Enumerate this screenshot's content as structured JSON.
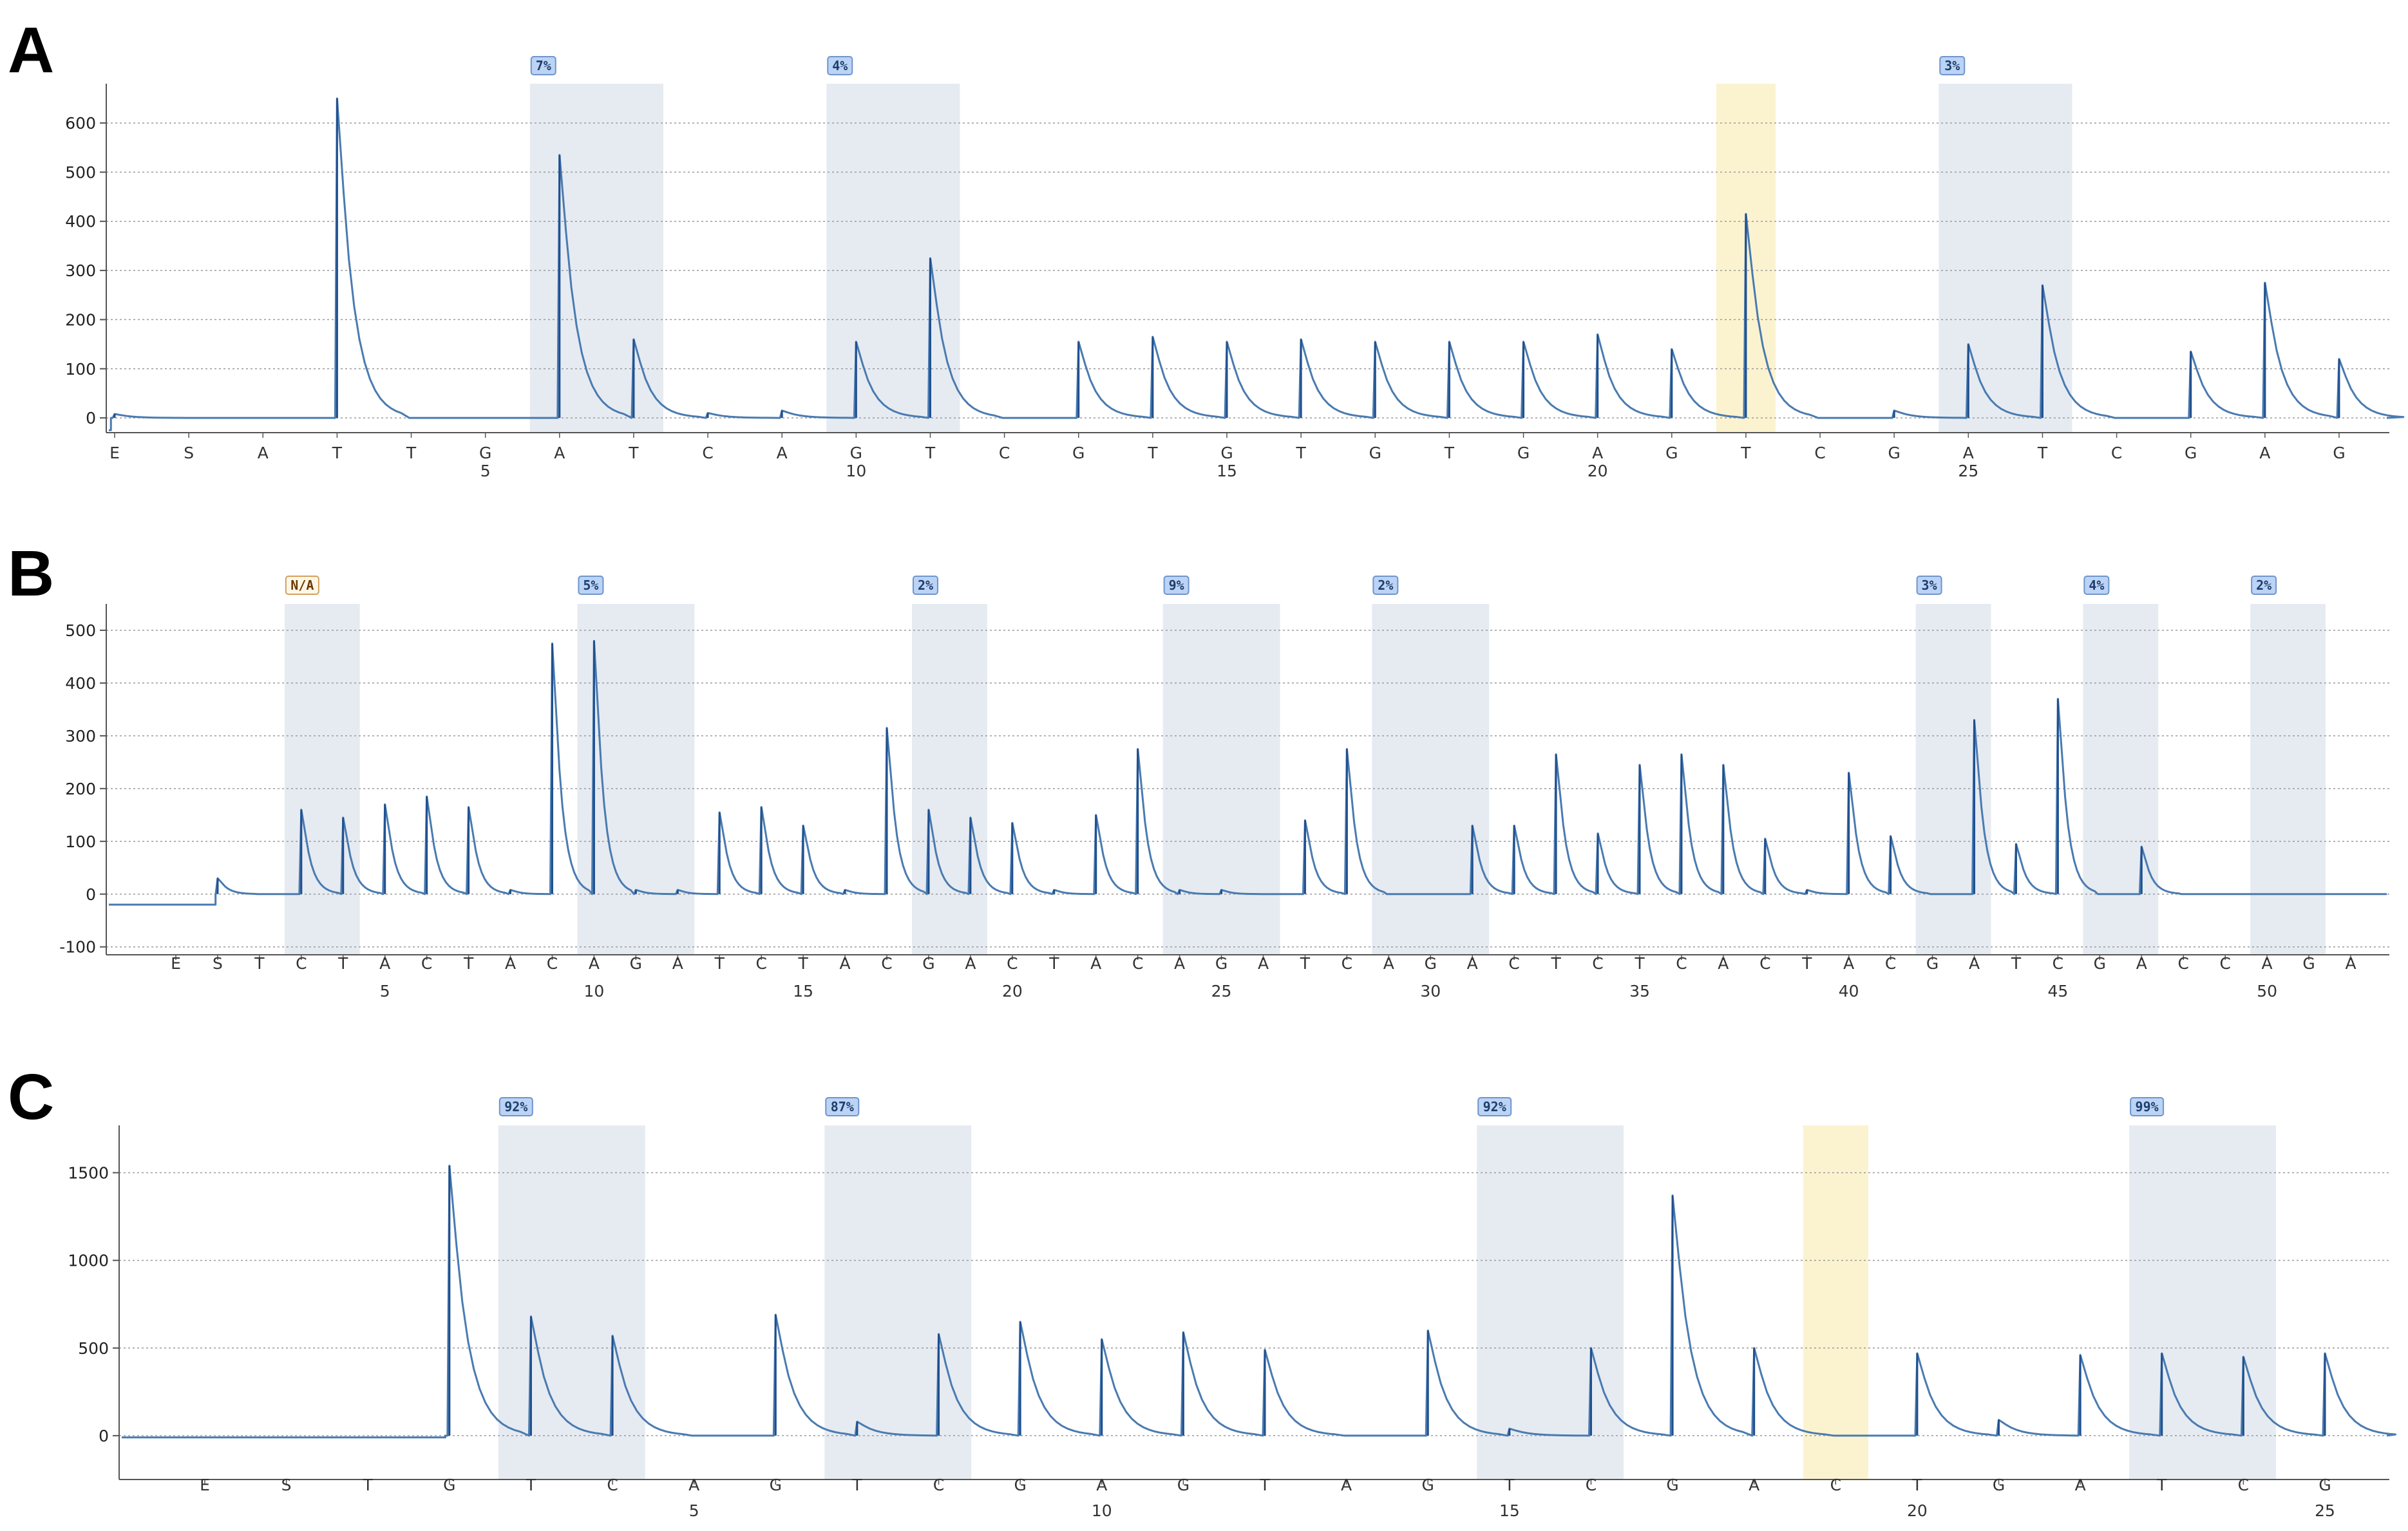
{
  "chart_data": [
    {
      "panel": "A",
      "type": "line",
      "y_ticks": [
        0,
        100,
        200,
        300,
        400,
        500,
        600
      ],
      "ylim": [
        -30,
        680
      ],
      "grid": "horizontal dotted",
      "dispensations": [
        "E",
        "S",
        "A",
        "T",
        "T",
        "G",
        "A",
        "T",
        "C",
        "A",
        "G",
        "T",
        "C",
        "G",
        "T",
        "G",
        "T",
        "G",
        "T",
        "G",
        "A",
        "G",
        "T",
        "C",
        "G",
        "A",
        "T",
        "C",
        "G",
        "A",
        "G"
      ],
      "x_numbers": [
        {
          "label": "5",
          "at": 6
        },
        {
          "label": "10",
          "at": 11
        },
        {
          "label": "15",
          "at": 16
        },
        {
          "label": "20",
          "at": 21
        },
        {
          "label": "25",
          "at": 26
        }
      ],
      "peaks": [
        8,
        0,
        0,
        650,
        0,
        0,
        535,
        160,
        10,
        15,
        155,
        325,
        0,
        155,
        165,
        155,
        160,
        155,
        155,
        155,
        170,
        140,
        415,
        0,
        15,
        150,
        270,
        0,
        135,
        275,
        120
      ],
      "baseline_start": -25,
      "regions": [
        {
          "from": 6.6,
          "to": 8.4,
          "style": "variable",
          "badge": "7%"
        },
        {
          "from": 10.6,
          "to": 12.4,
          "style": "variable",
          "badge": "4%"
        },
        {
          "from": 22.6,
          "to": 23.4,
          "style": "control",
          "badge": ""
        },
        {
          "from": 25.6,
          "to": 27.4,
          "style": "variable",
          "badge": "3%"
        }
      ]
    },
    {
      "panel": "B",
      "type": "line",
      "y_ticks": [
        -100,
        0,
        100,
        200,
        300,
        400,
        500
      ],
      "ylim": [
        -115,
        550
      ],
      "grid": "horizontal dotted",
      "dispensations": [
        "E",
        "S",
        "T",
        "C",
        "T",
        "A",
        "C",
        "T",
        "A",
        "C",
        "A",
        "G",
        "A",
        "T",
        "C",
        "T",
        "A",
        "C",
        "G",
        "A",
        "C",
        "T",
        "A",
        "C",
        "A",
        "G",
        "A",
        "T",
        "C",
        "A",
        "G",
        "A",
        "C",
        "T",
        "C",
        "T",
        "C",
        "A",
        "C",
        "T",
        "A",
        "C",
        "G",
        "A",
        "T",
        "C",
        "G",
        "A",
        "C",
        "C",
        "A",
        "G",
        "A"
      ],
      "x_numbers": [
        {
          "label": "5",
          "at": 6
        },
        {
          "label": "10",
          "at": 11
        },
        {
          "label": "15",
          "at": 16
        },
        {
          "label": "20",
          "at": 21
        },
        {
          "label": "25",
          "at": 26
        },
        {
          "label": "30",
          "at": 31
        },
        {
          "label": "35",
          "at": 36
        },
        {
          "label": "40",
          "at": 41
        },
        {
          "label": "45",
          "at": 46
        },
        {
          "label": "50",
          "at": 51
        }
      ],
      "peaks": [
        0,
        30,
        0,
        160,
        145,
        170,
        185,
        165,
        8,
        475,
        480,
        8,
        8,
        155,
        165,
        130,
        8,
        315,
        160,
        145,
        135,
        8,
        150,
        275,
        8,
        8,
        0,
        140,
        275,
        0,
        0,
        130,
        130,
        265,
        115,
        245,
        265,
        245,
        105,
        8,
        230,
        110,
        0,
        330,
        95,
        370,
        0,
        90,
        0,
        0,
        0,
        0,
        0
      ],
      "baseline_start": -20,
      "regions": [
        {
          "from": 3.6,
          "to": 5.4,
          "style": "variable",
          "badge": "N/A"
        },
        {
          "from": 10.6,
          "to": 13.4,
          "style": "variable",
          "badge": "5%"
        },
        {
          "from": 18.6,
          "to": 20.4,
          "style": "variable",
          "badge": "2%"
        },
        {
          "from": 24.6,
          "to": 27.4,
          "style": "variable",
          "badge": "9%"
        },
        {
          "from": 29.6,
          "to": 32.4,
          "style": "variable",
          "badge": "2%"
        },
        {
          "from": 42.6,
          "to": 44.4,
          "style": "variable",
          "badge": "3%"
        },
        {
          "from": 46.6,
          "to": 48.4,
          "style": "variable",
          "badge": "4%"
        },
        {
          "from": 50.6,
          "to": 52.4,
          "style": "variable",
          "badge": "2%"
        }
      ]
    },
    {
      "panel": "C",
      "type": "line",
      "y_ticks": [
        0,
        500,
        1000,
        1500
      ],
      "ylim": [
        -250,
        1770
      ],
      "grid": "horizontal dotted",
      "dispensations": [
        "E",
        "S",
        "T",
        "G",
        "T",
        "C",
        "A",
        "G",
        "T",
        "C",
        "G",
        "A",
        "G",
        "T",
        "A",
        "G",
        "T",
        "C",
        "G",
        "A",
        "C",
        "T",
        "G",
        "A",
        "T",
        "C",
        "G"
      ],
      "x_numbers": [
        {
          "label": "5",
          "at": 7
        },
        {
          "label": "10",
          "at": 12
        },
        {
          "label": "15",
          "at": 17
        },
        {
          "label": "20",
          "at": 22
        },
        {
          "label": "25",
          "at": 27
        }
      ],
      "peaks": [
        0,
        0,
        0,
        1540,
        680,
        570,
        0,
        690,
        80,
        580,
        650,
        550,
        590,
        490,
        0,
        600,
        40,
        500,
        1370,
        500,
        0,
        470,
        90,
        460,
        470,
        450,
        470
      ],
      "baseline_start": -10,
      "regions": [
        {
          "from": 4.6,
          "to": 6.4,
          "style": "variable",
          "badge": "92%"
        },
        {
          "from": 8.6,
          "to": 10.4,
          "style": "variable",
          "badge": "87%"
        },
        {
          "from": 16.6,
          "to": 18.4,
          "style": "variable",
          "badge": "92%"
        },
        {
          "from": 20.6,
          "to": 21.4,
          "style": "control",
          "badge": ""
        },
        {
          "from": 24.6,
          "to": 26.4,
          "style": "variable",
          "badge": "99%"
        }
      ]
    }
  ],
  "colors": {
    "trace": "#4a7bb0",
    "trace_peak": "#1f4f8e",
    "variable_region": "#e6ebf2",
    "control_region": "#fbf3d0",
    "badge_fill": "#bcd3f5",
    "badge_stroke": "#6d95cc",
    "badge_na_fill": "#fff7e6",
    "badge_na_stroke": "#d2a060",
    "grid": "#9a9a9a",
    "axis": "#555555"
  }
}
